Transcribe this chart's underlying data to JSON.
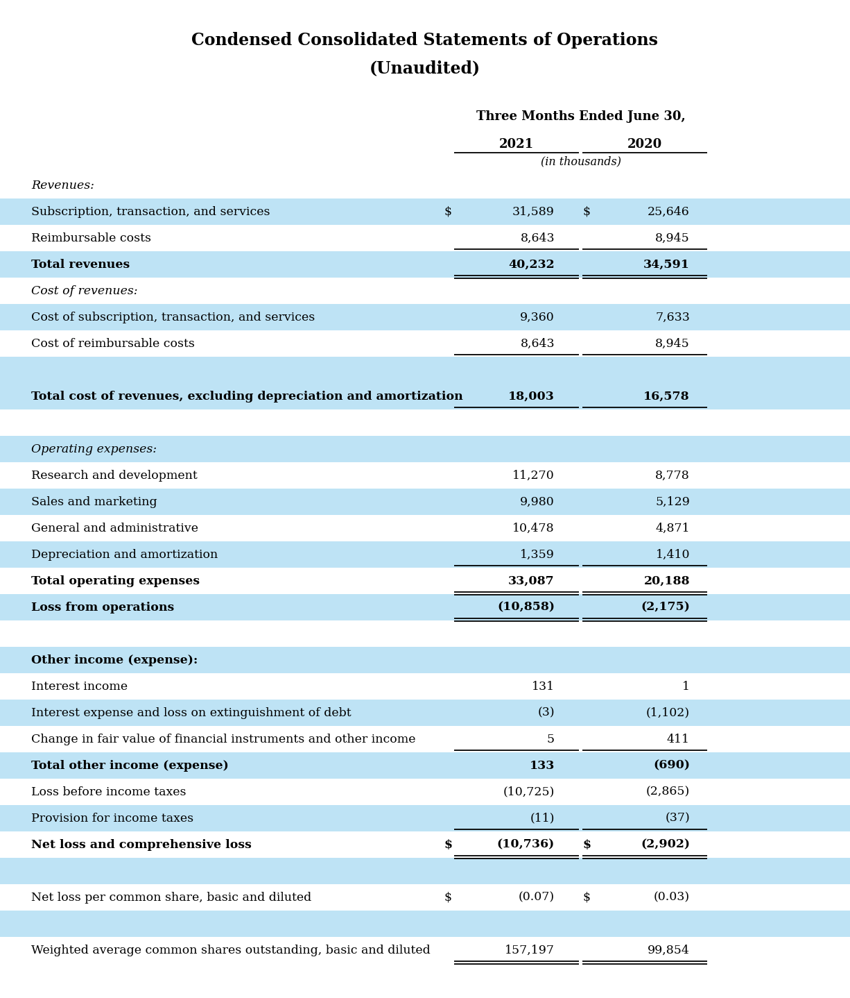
{
  "title_line1": "Condensed Consolidated Statements of Operations",
  "title_line2": "(Unaudited)",
  "col_header": "Three Months Ended June 30,",
  "col_year1": "2021",
  "col_year2": "2020",
  "col_subheader": "(in thousands)",
  "blue_bg": "#bee3f5",
  "rows": [
    {
      "label": "Revenues:",
      "val1": "",
      "val2": "",
      "style": "italic",
      "bg": "white",
      "underline": false,
      "double_underline": false,
      "dollar1": false,
      "dollar2": false
    },
    {
      "label": "Subscription, transaction, and services",
      "val1": "31,589",
      "val2": "25,646",
      "style": "normal",
      "bg": "blue",
      "underline": false,
      "double_underline": false,
      "dollar1": true,
      "dollar2": true
    },
    {
      "label": "Reimbursable costs",
      "val1": "8,643",
      "val2": "8,945",
      "style": "normal",
      "bg": "white",
      "underline": true,
      "double_underline": false,
      "dollar1": false,
      "dollar2": false
    },
    {
      "label": "Total revenues",
      "val1": "40,232",
      "val2": "34,591",
      "style": "bold",
      "bg": "blue",
      "underline": true,
      "double_underline": true,
      "dollar1": false,
      "dollar2": false
    },
    {
      "label": "Cost of revenues:",
      "val1": "",
      "val2": "",
      "style": "italic",
      "bg": "white",
      "underline": false,
      "double_underline": false,
      "dollar1": false,
      "dollar2": false
    },
    {
      "label": "Cost of subscription, transaction, and services",
      "val1": "9,360",
      "val2": "7,633",
      "style": "normal",
      "bg": "blue",
      "underline": false,
      "double_underline": false,
      "dollar1": false,
      "dollar2": false
    },
    {
      "label": "Cost of reimbursable costs",
      "val1": "8,643",
      "val2": "8,945",
      "style": "normal",
      "bg": "white",
      "underline": true,
      "double_underline": false,
      "dollar1": false,
      "dollar2": false
    },
    {
      "label": "",
      "val1": "",
      "val2": "",
      "style": "normal",
      "bg": "blue",
      "underline": false,
      "double_underline": false,
      "dollar1": false,
      "dollar2": false
    },
    {
      "label": "Total cost of revenues, excluding depreciation and amortization",
      "val1": "18,003",
      "val2": "16,578",
      "style": "bold",
      "bg": "blue",
      "underline": true,
      "double_underline": false,
      "dollar1": false,
      "dollar2": false
    },
    {
      "label": "",
      "val1": "",
      "val2": "",
      "style": "normal",
      "bg": "white",
      "underline": false,
      "double_underline": false,
      "dollar1": false,
      "dollar2": false
    },
    {
      "label": "Operating expenses:",
      "val1": "",
      "val2": "",
      "style": "italic",
      "bg": "blue",
      "underline": false,
      "double_underline": false,
      "dollar1": false,
      "dollar2": false
    },
    {
      "label": "Research and development",
      "val1": "11,270",
      "val2": "8,778",
      "style": "normal",
      "bg": "white",
      "underline": false,
      "double_underline": false,
      "dollar1": false,
      "dollar2": false
    },
    {
      "label": "Sales and marketing",
      "val1": "9,980",
      "val2": "5,129",
      "style": "normal",
      "bg": "blue",
      "underline": false,
      "double_underline": false,
      "dollar1": false,
      "dollar2": false
    },
    {
      "label": "General and administrative",
      "val1": "10,478",
      "val2": "4,871",
      "style": "normal",
      "bg": "white",
      "underline": false,
      "double_underline": false,
      "dollar1": false,
      "dollar2": false
    },
    {
      "label": "Depreciation and amortization",
      "val1": "1,359",
      "val2": "1,410",
      "style": "normal",
      "bg": "blue",
      "underline": true,
      "double_underline": false,
      "dollar1": false,
      "dollar2": false
    },
    {
      "label": "Total operating expenses",
      "val1": "33,087",
      "val2": "20,188",
      "style": "bold",
      "bg": "white",
      "underline": true,
      "double_underline": true,
      "dollar1": false,
      "dollar2": false
    },
    {
      "label": "Loss from operations",
      "val1": "(10,858)",
      "val2": "(2,175)",
      "style": "bold",
      "bg": "blue",
      "underline": true,
      "double_underline": true,
      "dollar1": false,
      "dollar2": false
    },
    {
      "label": "",
      "val1": "",
      "val2": "",
      "style": "normal",
      "bg": "white",
      "underline": false,
      "double_underline": false,
      "dollar1": false,
      "dollar2": false
    },
    {
      "label": "Other income (expense):",
      "val1": "",
      "val2": "",
      "style": "bold",
      "bg": "blue",
      "underline": false,
      "double_underline": false,
      "dollar1": false,
      "dollar2": false
    },
    {
      "label": "Interest income",
      "val1": "131",
      "val2": "1",
      "style": "normal",
      "bg": "white",
      "underline": false,
      "double_underline": false,
      "dollar1": false,
      "dollar2": false
    },
    {
      "label": "Interest expense and loss on extinguishment of debt",
      "val1": "(3)",
      "val2": "(1,102)",
      "style": "normal",
      "bg": "blue",
      "underline": false,
      "double_underline": false,
      "dollar1": false,
      "dollar2": false
    },
    {
      "label": "Change in fair value of financial instruments and other income",
      "val1": "5",
      "val2": "411",
      "style": "normal",
      "bg": "white",
      "underline": true,
      "double_underline": false,
      "dollar1": false,
      "dollar2": false
    },
    {
      "label": "Total other income (expense)",
      "val1": "133",
      "val2": "(690)",
      "style": "bold",
      "bg": "blue",
      "underline": false,
      "double_underline": false,
      "dollar1": false,
      "dollar2": false
    },
    {
      "label": "Loss before income taxes",
      "val1": "(10,725)",
      "val2": "(2,865)",
      "style": "normal",
      "bg": "white",
      "underline": false,
      "double_underline": false,
      "dollar1": false,
      "dollar2": false
    },
    {
      "label": "Provision for income taxes",
      "val1": "(11)",
      "val2": "(37)",
      "style": "normal",
      "bg": "blue",
      "underline": true,
      "double_underline": false,
      "dollar1": false,
      "dollar2": false
    },
    {
      "label": "Net loss and comprehensive loss",
      "val1": "(10,736)",
      "val2": "(2,902)",
      "style": "bold",
      "bg": "white",
      "underline": true,
      "double_underline": true,
      "dollar1": true,
      "dollar2": true
    },
    {
      "label": "",
      "val1": "",
      "val2": "",
      "style": "normal",
      "bg": "blue",
      "underline": false,
      "double_underline": false,
      "dollar1": false,
      "dollar2": false
    },
    {
      "label": "Net loss per common share, basic and diluted",
      "val1": "(0.07)",
      "val2": "(0.03)",
      "style": "normal",
      "bg": "white",
      "underline": false,
      "double_underline": false,
      "dollar1": true,
      "dollar2": true
    },
    {
      "label": "",
      "val1": "",
      "val2": "",
      "style": "normal",
      "bg": "blue",
      "underline": false,
      "double_underline": false,
      "dollar1": false,
      "dollar2": false
    },
    {
      "label": "Weighted average common shares outstanding, basic and diluted",
      "val1": "157,197",
      "val2": "99,854",
      "style": "normal",
      "bg": "white",
      "underline": true,
      "double_underline": true,
      "dollar1": false,
      "dollar2": false
    }
  ]
}
